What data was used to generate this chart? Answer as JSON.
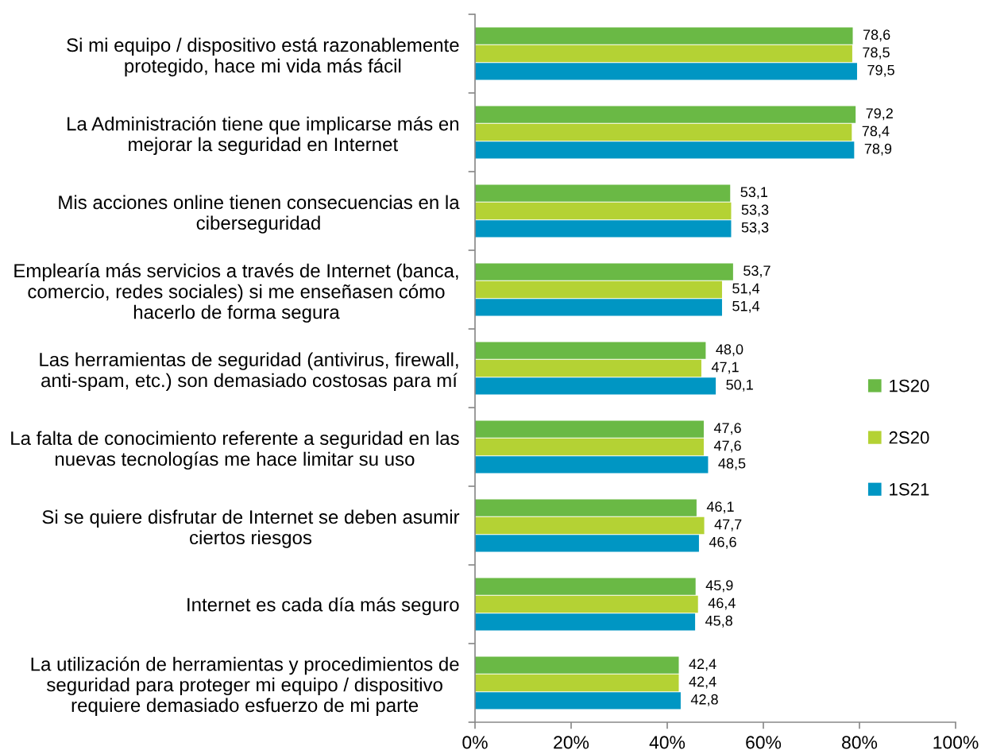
{
  "chart_data": {
    "type": "bar",
    "orientation": "horizontal",
    "categories": [
      "Si mi equipo / dispositivo está razonablemente\nprotegido, hace mi vida más fácil",
      "La Administración tiene que implicarse más en\nmejorar la seguridad en Internet",
      "Mis acciones online tienen consecuencias en la\nciberseguridad",
      "Emplearía más servicios a través de Internet (banca,\ncomercio, redes sociales) si me enseñasen cómo\nhacerlo de forma segura",
      "Las herramientas de seguridad (antivirus, firewall,\nanti-spam, etc.) son demasiado costosas para mí",
      "La falta de conocimiento referente a seguridad en las\nnuevas tecnologías me hace limitar su uso",
      "Si se quiere disfrutar de Internet se deben asumir\nciertos riesgos",
      "Internet es cada día más seguro",
      "La utilización de herramientas y procedimientos de\nseguridad para proteger mi equipo / dispositivo\nrequiere demasiado esfuerzo de mi parte"
    ],
    "series": [
      {
        "name": "1S20",
        "color": "#6ab945",
        "values": [
          78.6,
          79.2,
          53.1,
          53.7,
          48.0,
          47.6,
          46.1,
          45.9,
          42.4
        ],
        "value_labels": [
          "78,6",
          "79,2",
          "53,1",
          "53,7",
          "48,0",
          "47,6",
          "46,1",
          "45,9",
          "42,4"
        ]
      },
      {
        "name": "2S20",
        "color": "#b4d234",
        "values": [
          78.5,
          78.4,
          53.3,
          51.4,
          47.1,
          47.6,
          47.7,
          46.4,
          42.4
        ],
        "value_labels": [
          "78,5",
          "78,4",
          "53,3",
          "51,4",
          "47,1",
          "47,6",
          "47,7",
          "46,4",
          "42,4"
        ]
      },
      {
        "name": "1S21",
        "color": "#0096c3",
        "values": [
          79.5,
          78.9,
          53.3,
          51.4,
          50.1,
          48.5,
          46.6,
          45.8,
          42.8
        ],
        "value_labels": [
          "79,5",
          "78,9",
          "53,3",
          "51,4",
          "50,1",
          "48,5",
          "46,6",
          "45,8",
          "42,8"
        ]
      }
    ],
    "xlim": [
      0,
      100
    ],
    "xticks": [
      {
        "value": 0,
        "label": "0%"
      },
      {
        "value": 20,
        "label": "20%"
      },
      {
        "value": 40,
        "label": "40%"
      },
      {
        "value": 60,
        "label": "60%"
      },
      {
        "value": 80,
        "label": "80%"
      },
      {
        "value": 100,
        "label": "100%"
      }
    ],
    "legend": "right"
  }
}
